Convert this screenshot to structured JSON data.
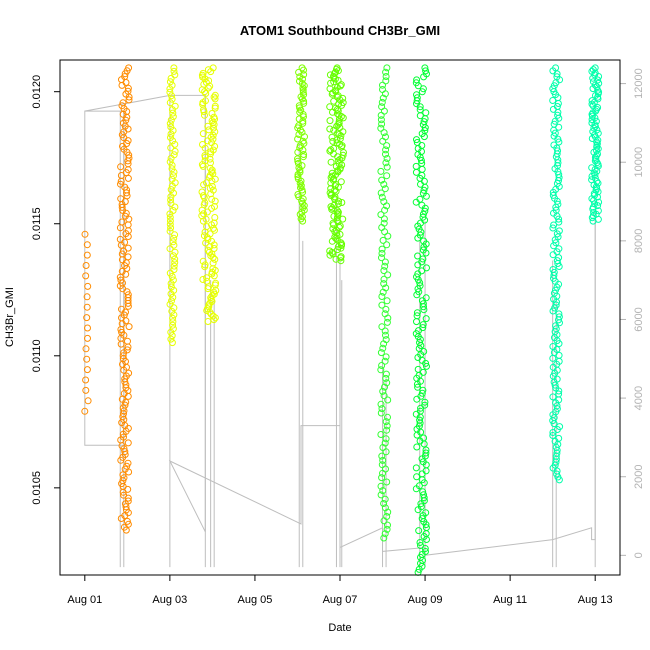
{
  "chart_data": {
    "type": "scatter",
    "title": "ATOM1 Southbound CH3Br_GMI",
    "xlabel": "Date",
    "ylabel": "CH3Br_GMI",
    "x_type": "date",
    "xlim": [
      "2016-07-31T10:00",
      "2016-08-13T14:00"
    ],
    "ylim": [
      0.01017,
      0.01212
    ],
    "y2lim": [
      -500,
      12600
    ],
    "x_ticks": [
      {
        "date": "2016-08-01",
        "label": "Aug 01"
      },
      {
        "date": "2016-08-03",
        "label": "Aug 03"
      },
      {
        "date": "2016-08-05",
        "label": "Aug 05"
      },
      {
        "date": "2016-08-07",
        "label": "Aug 07"
      },
      {
        "date": "2016-08-09",
        "label": "Aug 09"
      },
      {
        "date": "2016-08-11",
        "label": "Aug 11"
      },
      {
        "date": "2016-08-13",
        "label": "Aug 13"
      }
    ],
    "y_ticks": [
      {
        "value": 0.0105,
        "label": "0.0105"
      },
      {
        "value": 0.011,
        "label": "0.0110"
      },
      {
        "value": 0.0115,
        "label": "0.0115"
      },
      {
        "value": 0.012,
        "label": "0.0120"
      }
    ],
    "y2_ticks": [
      {
        "value": 0,
        "label": "0"
      },
      {
        "value": 2000,
        "label": "2000"
      },
      {
        "value": 4000,
        "label": "4000"
      },
      {
        "value": 6000,
        "label": "6000"
      },
      {
        "value": 8000,
        "label": "8000"
      },
      {
        "value": 10000,
        "label": "10000"
      },
      {
        "value": 12000,
        "label": "12000"
      }
    ],
    "grid": false,
    "legend": "none",
    "altitude_line_color": "#bebebe",
    "segments": [
      {
        "start": "2016-08-01T00:00",
        "end": "2016-08-01T02:00",
        "y_min": 0.01079,
        "y_max": 0.01146,
        "color": "#ff8c00",
        "density": 18
      },
      {
        "start": "2016-08-01T20:00",
        "end": "2016-08-02T01:00",
        "y_min": 0.01034,
        "y_max": 0.01209,
        "color": "#ff8c00",
        "density": 160
      },
      {
        "start": "2016-08-03T00:00",
        "end": "2016-08-03T03:00",
        "y_min": 0.01105,
        "y_max": 0.01209,
        "color": "#e6ff00",
        "density": 80
      },
      {
        "start": "2016-08-03T18:00",
        "end": "2016-08-04T02:00",
        "y_min": 0.01113,
        "y_max": 0.01209,
        "color": "#e6ff00",
        "density": 140
      },
      {
        "start": "2016-08-06T00:00",
        "end": "2016-08-06T04:00",
        "y_min": 0.01151,
        "y_max": 0.01209,
        "color": "#7fff00",
        "density": 70
      },
      {
        "start": "2016-08-06T18:00",
        "end": "2016-08-07T02:00",
        "y_min": 0.01136,
        "y_max": 0.01209,
        "color": "#66ff00",
        "density": 140
      },
      {
        "start": "2016-08-07T23:00",
        "end": "2016-08-08T03:00",
        "y_min": 0.01031,
        "y_max": 0.01209,
        "color": "#33ff33",
        "density": 110
      },
      {
        "start": "2016-08-08T19:00",
        "end": "2016-08-09T01:00",
        "y_min": 0.01018,
        "y_max": 0.01209,
        "color": "#00ff33",
        "density": 170
      },
      {
        "start": "2016-08-12T00:00",
        "end": "2016-08-12T04:00",
        "y_min": 0.01053,
        "y_max": 0.01209,
        "color": "#00ffaa",
        "density": 140
      },
      {
        "start": "2016-08-12T22:00",
        "end": "2016-08-13T02:00",
        "y_min": 0.01151,
        "y_max": 0.01209,
        "color": "#00ffaa",
        "density": 90
      }
    ],
    "altitude_series": [
      {
        "date": "2016-08-01T00:00",
        "alt": 11300
      },
      {
        "date": "2016-08-01T22:00",
        "alt": 11300
      },
      {
        "date": "2016-08-01T22:00",
        "alt": 2800
      },
      {
        "date": "2016-08-01T00:00",
        "alt": 2800
      },
      {
        "date": "2016-08-01T00:00",
        "alt": 11300
      },
      {
        "date": "2016-08-03T00:00",
        "alt": 11700
      },
      {
        "date": "2016-08-03T20:00",
        "alt": 11700
      },
      {
        "date": "2016-08-03T20:00",
        "alt": 600
      },
      {
        "date": "2016-08-03T00:00",
        "alt": 2400
      },
      {
        "date": "2016-08-06T02:00",
        "alt": 800
      },
      {
        "date": "2016-08-06T02:00",
        "alt": 3300
      },
      {
        "date": "2016-08-07T00:00",
        "alt": 3300
      },
      {
        "date": "2016-08-07T00:00",
        "alt": 200
      },
      {
        "date": "2016-08-08T00:00",
        "alt": 700
      },
      {
        "date": "2016-08-08T00:00",
        "alt": 100
      },
      {
        "date": "2016-08-09T00:00",
        "alt": 200
      },
      {
        "date": "2016-08-09T00:00",
        "alt": 0
      },
      {
        "date": "2016-08-12T00:00",
        "alt": 400
      },
      {
        "date": "2016-08-12T22:00",
        "alt": 700
      },
      {
        "date": "2016-08-12T22:00",
        "alt": 400
      },
      {
        "date": "2016-08-13T00:00",
        "alt": 400
      },
      {
        "date": "2016-08-13T00:00",
        "alt": 9000
      }
    ],
    "altitude_drops": [
      {
        "date": "2016-08-01T20:00",
        "top": 11300
      },
      {
        "date": "2016-08-01T22:00",
        "top": 11300
      },
      {
        "date": "2016-08-03T00:00",
        "top": 11700
      },
      {
        "date": "2016-08-03T20:00",
        "top": 11700
      },
      {
        "date": "2016-08-03T23:00",
        "top": 7000
      },
      {
        "date": "2016-08-04T01:00",
        "top": 6500
      },
      {
        "date": "2016-08-06T01:00",
        "top": 10500
      },
      {
        "date": "2016-08-06T03:00",
        "top": 8000
      },
      {
        "date": "2016-08-06T22:00",
        "top": 9000
      },
      {
        "date": "2016-08-07T00:00",
        "top": 7500
      },
      {
        "date": "2016-08-07T01:00",
        "top": 7000
      },
      {
        "date": "2016-08-08T00:00",
        "top": 5000
      },
      {
        "date": "2016-08-08T02:00",
        "top": 4500
      },
      {
        "date": "2016-08-08T21:00",
        "top": 8000
      },
      {
        "date": "2016-08-09T00:00",
        "top": 8500
      },
      {
        "date": "2016-08-12T00:00",
        "top": 7500
      },
      {
        "date": "2016-08-12T02:00",
        "top": 6500
      },
      {
        "date": "2016-08-13T00:00",
        "top": 9000
      }
    ]
  }
}
